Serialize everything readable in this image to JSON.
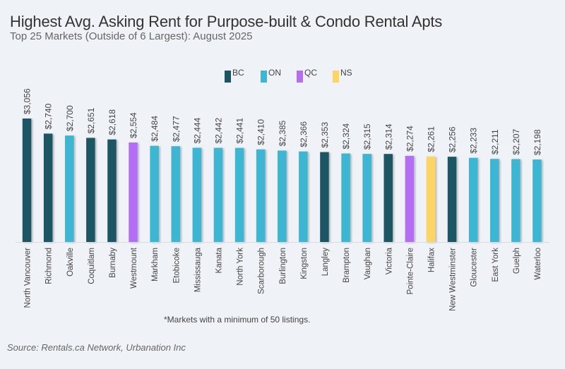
{
  "title": "Highest Avg. Asking Rent for Purpose-built & Condo Rental Apts",
  "subtitle": "Top 25 Markets (Outside of 6 Largest): August 2025",
  "footnote": "*Markets with a minimum of 50 listings.",
  "source": "Source: Rentals.ca Network, Urbanation Inc",
  "colors": {
    "BC": "#1b5563",
    "ON": "#3cb6d3",
    "QC": "#b36ef5",
    "NS": "#fdd565"
  },
  "legend": [
    {
      "key": "BC",
      "label": "BC"
    },
    {
      "key": "ON",
      "label": "ON"
    },
    {
      "key": "QC",
      "label": "QC"
    },
    {
      "key": "NS",
      "label": "NS"
    }
  ],
  "chart_data": {
    "type": "bar",
    "title": "Highest Avg. Asking Rent for Purpose-built & Condo Rental Apts",
    "subtitle": "Top 25 Markets (Outside of 6 Largest): August 2025",
    "xlabel": "",
    "ylabel": "",
    "ylim": [
      470,
      3100
    ],
    "grid": false,
    "legend_position": "top-center",
    "categories": [
      "North Vancouver",
      "Richmond",
      "Oakville",
      "Coquitlam",
      "Burnaby",
      "Westmount",
      "Markham",
      "Etobicoke",
      "Mississauga",
      "Kanata",
      "North York",
      "Scarborough",
      "Burlington",
      "Kingston",
      "Langley",
      "Brampton",
      "Vaughan",
      "Victoria",
      "Pointe-Claire",
      "Halifax",
      "New Westminster",
      "Gloucester",
      "East York",
      "Guelph",
      "Waterloo"
    ],
    "values": [
      3056,
      2740,
      2700,
      2651,
      2618,
      2554,
      2484,
      2477,
      2444,
      2442,
      2441,
      2410,
      2385,
      2366,
      2353,
      2324,
      2315,
      2314,
      2274,
      2261,
      2256,
      2233,
      2211,
      2207,
      2198
    ],
    "labels": [
      "$3,056",
      "$2,740",
      "$2,700",
      "$2,651",
      "$2,618",
      "$2,554",
      "$2,484",
      "$2,477",
      "$2,444",
      "$2,442",
      "$2,441",
      "$2,410",
      "$2,385",
      "$2,366",
      "$2,353",
      "$2,324",
      "$2,315",
      "$2,314",
      "$2,274",
      "$2,261",
      "$2,256",
      "$2,233",
      "$2,211",
      "$2,207",
      "$2,198"
    ],
    "province": [
      "BC",
      "BC",
      "ON",
      "BC",
      "BC",
      "QC",
      "ON",
      "ON",
      "ON",
      "ON",
      "ON",
      "ON",
      "ON",
      "ON",
      "BC",
      "ON",
      "ON",
      "BC",
      "QC",
      "NS",
      "BC",
      "ON",
      "ON",
      "ON",
      "ON"
    ],
    "series_legend": [
      "BC",
      "ON",
      "QC",
      "NS"
    ]
  }
}
